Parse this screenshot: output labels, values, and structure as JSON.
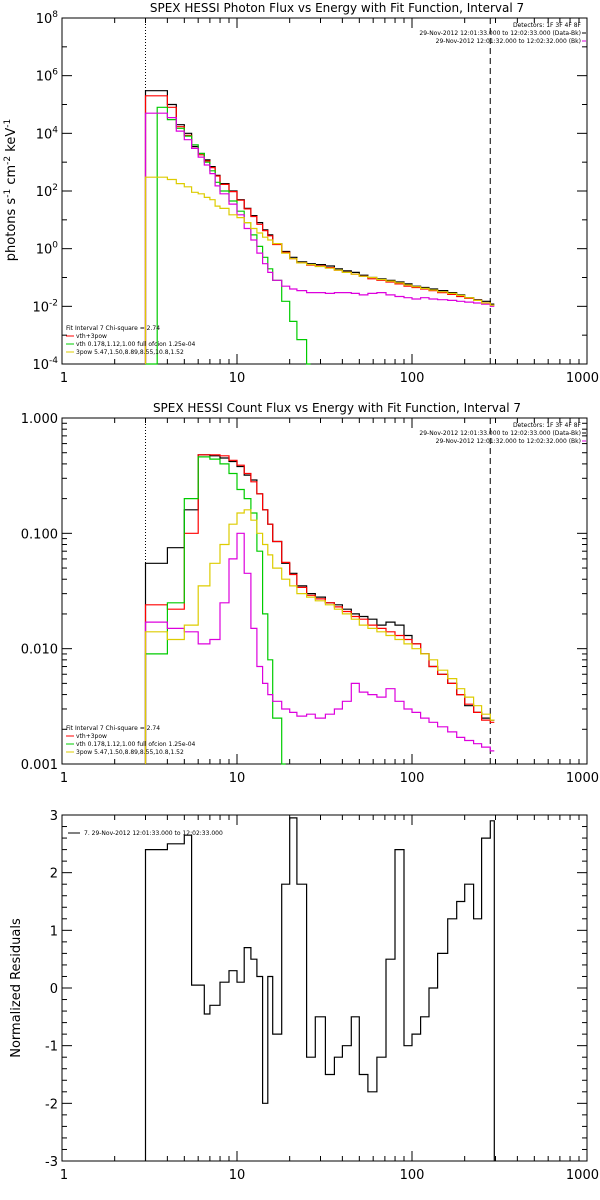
{
  "chart_data": [
    {
      "type": "line",
      "title": "SPEX HESSI Photon Flux vs Energy with Fit Function, Interval 7",
      "ylabel": "photons s-1 cm-2 keV-1",
      "xlabel": "",
      "x_scale": "log",
      "y_scale": "log",
      "xlim": [
        1,
        1000
      ],
      "ylim": [
        0.0001,
        100000000
      ],
      "x_ticks": [
        1,
        10,
        100,
        1000
      ],
      "x_tick_labels": [
        "1",
        "10",
        "100",
        "1000"
      ],
      "y_ticks": [
        0.0001,
        0.01,
        1,
        100,
        10000,
        1000000,
        100000000
      ],
      "y_tick_labels": [
        [
          "10",
          "-4"
        ],
        [
          "10",
          "-2"
        ],
        [
          "10",
          "0"
        ],
        [
          "10",
          "2"
        ],
        [
          "10",
          "4"
        ],
        [
          "10",
          "6"
        ],
        [
          "10",
          "8"
        ]
      ],
      "vlines": [
        {
          "x": 3,
          "style": "dotted",
          "color": "#000000"
        },
        {
          "x": 280,
          "style": "dashed",
          "color": "#000000"
        }
      ],
      "header_text": [
        "Detectors: 1F 3F 4F 8F",
        "29-Nov-2012 12:01:33.000 to 12:02:33.000 (Data-Bk)",
        "29-Nov-2012 12:01:32.000 to 12:02:32.000 (Bk)"
      ],
      "legend_text": [
        "Fit Interval 7   Chi-square = 2.74",
        "vth+3pow",
        "vth 0.178,1.12,1.00  full ofcion 1.25e-04",
        "3pow 5.47,1.50,8.89,8.55,10.8,1.52"
      ],
      "series": [
        {
          "name": "",
          "color": "#000000",
          "x": [
            3,
            3.5,
            4,
            4.5,
            5,
            5.5,
            6,
            6.5,
            7,
            7.5,
            8,
            9,
            10,
            11,
            12,
            13,
            14,
            15,
            16,
            18,
            20,
            22,
            25,
            28,
            32,
            36,
            40,
            45,
            50,
            56,
            63,
            71,
            80,
            90,
            100,
            112,
            125,
            140,
            160,
            180,
            200,
            225,
            250,
            280
          ],
          "y": [
            300000,
            300000,
            100000,
            20000,
            10000,
            3500,
            2000,
            1200,
            700,
            350,
            180,
            100,
            50,
            25,
            14,
            8,
            4.5,
            3,
            1.5,
            0.8,
            0.5,
            0.35,
            0.3,
            0.28,
            0.25,
            0.2,
            0.17,
            0.15,
            0.12,
            0.1,
            0.09,
            0.08,
            0.07,
            0.06,
            0.05,
            0.045,
            0.04,
            0.035,
            0.03,
            0.025,
            0.02,
            0.017,
            0.015,
            0.012
          ]
        },
        {
          "name": "",
          "color": "#ff0000",
          "x": [
            3,
            3.5,
            4,
            4.5,
            5,
            5.5,
            6,
            6.5,
            7,
            7.5,
            8,
            9,
            10,
            11,
            12,
            13,
            14,
            15,
            16,
            18,
            20,
            22,
            25,
            28,
            32,
            36,
            40,
            45,
            50,
            56,
            63,
            71,
            80,
            90,
            100,
            112,
            125,
            140,
            160,
            180,
            200,
            225,
            250,
            280
          ],
          "y": [
            200000,
            200000,
            80000,
            17000,
            8500,
            3000,
            1800,
            1100,
            650,
            330,
            170,
            95,
            48,
            24,
            13,
            7,
            4.2,
            2.8,
            1.4,
            0.75,
            0.45,
            0.32,
            0.27,
            0.25,
            0.22,
            0.18,
            0.15,
            0.13,
            0.11,
            0.09,
            0.08,
            0.07,
            0.06,
            0.05,
            0.045,
            0.04,
            0.035,
            0.03,
            0.026,
            0.022,
            0.019,
            0.016,
            0.013,
            0.011
          ]
        },
        {
          "name": "",
          "color": "#00cc00",
          "x": [
            3,
            3.5,
            4,
            4.5,
            5,
            5.5,
            6,
            6.5,
            7,
            7.5,
            8,
            9,
            10,
            11,
            12,
            13,
            14,
            15,
            16,
            18,
            20,
            22,
            25
          ],
          "y": [
            0.0001,
            80000,
            30000,
            15000,
            8000,
            4000,
            2000,
            1000,
            500,
            200,
            100,
            45,
            20,
            8,
            3,
            1.2,
            0.5,
            0.2,
            0.08,
            0.015,
            0.003,
            0.0007,
            0.0001
          ]
        },
        {
          "name": "",
          "color": "#dd00dd",
          "x": [
            3,
            3.5,
            4,
            4.5,
            5,
            5.5,
            6,
            6.5,
            7,
            7.5,
            8,
            9,
            10,
            11,
            12,
            13,
            14,
            15,
            16,
            18,
            20,
            22,
            25,
            28,
            32,
            36,
            40,
            45,
            50,
            56,
            63,
            71,
            80,
            90,
            100,
            112,
            125,
            140,
            160,
            180,
            200,
            225,
            250,
            280
          ],
          "y": [
            50000,
            50000,
            35000,
            12000,
            6000,
            3000,
            1500,
            800,
            400,
            150,
            80,
            35,
            15,
            5,
            2,
            0.7,
            0.3,
            0.15,
            0.08,
            0.05,
            0.04,
            0.035,
            0.03,
            0.03,
            0.028,
            0.03,
            0.03,
            0.028,
            0.025,
            0.028,
            0.03,
            0.025,
            0.022,
            0.02,
            0.018,
            0.02,
            0.018,
            0.017,
            0.016,
            0.015,
            0.014,
            0.013,
            0.012,
            0.01
          ]
        },
        {
          "name": "",
          "color": "#ddcc00",
          "x": [
            3,
            3.5,
            4,
            4.5,
            5,
            5.5,
            6,
            6.5,
            7,
            7.5,
            8,
            9,
            10,
            11,
            12,
            13,
            14,
            15,
            16,
            18,
            20,
            22,
            25,
            28,
            32,
            36,
            40,
            45,
            50,
            56,
            63,
            71,
            80,
            90,
            100,
            112,
            125,
            140,
            160,
            180,
            200,
            225,
            250,
            280
          ],
          "y": [
            300,
            300,
            250,
            180,
            140,
            90,
            80,
            60,
            50,
            30,
            25,
            15,
            12,
            8,
            5,
            3.5,
            2.5,
            2,
            1.5,
            0.7,
            0.45,
            0.32,
            0.28,
            0.24,
            0.21,
            0.18,
            0.15,
            0.13,
            0.11,
            0.1,
            0.085,
            0.075,
            0.065,
            0.055,
            0.048,
            0.042,
            0.037,
            0.032,
            0.028,
            0.024,
            0.02,
            0.016,
            0.013,
            0.011
          ]
        }
      ]
    },
    {
      "type": "line",
      "title": "SPEX HESSI Count Flux vs Energy with Fit Function, Interval 7",
      "ylabel": "",
      "xlabel": "",
      "x_scale": "log",
      "y_scale": "log",
      "xlim": [
        1,
        1000
      ],
      "ylim": [
        0.001,
        1.0
      ],
      "x_ticks": [
        1,
        10,
        100,
        1000
      ],
      "x_tick_labels": [
        "1",
        "10",
        "100",
        "1000"
      ],
      "y_ticks": [
        0.001,
        0.01,
        0.1,
        1.0
      ],
      "y_tick_labels": [
        "0.001",
        "0.010",
        "0.100",
        "1.000"
      ],
      "vlines": [
        {
          "x": 3,
          "style": "dotted",
          "color": "#000000"
        },
        {
          "x": 280,
          "style": "dashed",
          "color": "#000000"
        }
      ],
      "header_text": [
        "Detectors: 1F 3F 4F 8F",
        "29-Nov-2012 12:01:33.000 to 12:02:33.000 (Data-Bk)",
        "29-Nov-2012 12:01:32.000 to 12:02:32.000 (Bk)"
      ],
      "legend_text": [
        "Fit Interval 7   Chi-square = 2.74",
        "vth+3pow",
        "vth 0.178,1.12,1.00  full ofcion 1.25e-04",
        "3pow 5.47,1.50,8.89,8.55,10.8,1.52"
      ],
      "series": [
        {
          "name": "",
          "color": "#000000",
          "x": [
            3,
            4,
            5,
            6,
            7,
            8,
            9,
            10,
            11,
            12,
            13,
            14,
            15,
            16,
            18,
            20,
            22,
            25,
            28,
            32,
            36,
            40,
            45,
            50,
            56,
            63,
            71,
            80,
            90,
            100,
            112,
            125,
            140,
            160,
            180,
            200,
            225,
            250,
            280
          ],
          "y": [
            0.055,
            0.075,
            0.16,
            0.48,
            0.47,
            0.45,
            0.42,
            0.38,
            0.32,
            0.29,
            0.22,
            0.16,
            0.12,
            0.085,
            0.055,
            0.045,
            0.035,
            0.03,
            0.028,
            0.025,
            0.024,
            0.022,
            0.02,
            0.019,
            0.018,
            0.016,
            0.017,
            0.016,
            0.013,
            0.011,
            0.009,
            0.007,
            0.006,
            0.005,
            0.004,
            0.0032,
            0.0028,
            0.0025,
            0.0024
          ]
        },
        {
          "name": "",
          "color": "#ff0000",
          "x": [
            3,
            4,
            5,
            6,
            7,
            8,
            9,
            10,
            11,
            12,
            13,
            14,
            15,
            16,
            18,
            20,
            22,
            25,
            28,
            32,
            36,
            40,
            45,
            50,
            56,
            63,
            71,
            80,
            90,
            100,
            112,
            125,
            140,
            160,
            180,
            200,
            225,
            250,
            280
          ],
          "y": [
            0.024,
            0.022,
            0.1,
            0.48,
            0.48,
            0.47,
            0.43,
            0.39,
            0.33,
            0.28,
            0.22,
            0.16,
            0.12,
            0.085,
            0.056,
            0.044,
            0.034,
            0.029,
            0.027,
            0.025,
            0.023,
            0.021,
            0.019,
            0.018,
            0.016,
            0.015,
            0.014,
            0.013,
            0.012,
            0.011,
            0.009,
            0.007,
            0.006,
            0.005,
            0.004,
            0.0033,
            0.0028,
            0.0024,
            0.0023
          ]
        },
        {
          "name": "",
          "color": "#00cc00",
          "x": [
            3,
            4,
            5,
            6,
            7,
            8,
            9,
            10,
            11,
            12,
            13,
            14,
            15,
            16,
            18
          ],
          "y": [
            0.009,
            0.025,
            0.2,
            0.46,
            0.44,
            0.4,
            0.33,
            0.24,
            0.2,
            0.15,
            0.07,
            0.02,
            0.008,
            0.0025,
            0.0009
          ]
        },
        {
          "name": "",
          "color": "#dd00dd",
          "x": [
            3,
            4,
            5,
            6,
            7,
            8,
            9,
            10,
            11,
            12,
            13,
            14,
            15,
            16,
            18,
            20,
            22,
            25,
            28,
            32,
            36,
            40,
            45,
            50,
            56,
            63,
            71,
            80,
            90,
            100,
            112,
            125,
            140,
            160,
            180,
            200,
            225,
            250,
            280
          ],
          "y": [
            0.017,
            0.015,
            0.014,
            0.011,
            0.012,
            0.025,
            0.06,
            0.1,
            0.045,
            0.015,
            0.007,
            0.005,
            0.004,
            0.0035,
            0.003,
            0.0028,
            0.0026,
            0.0027,
            0.0025,
            0.0027,
            0.003,
            0.0035,
            0.005,
            0.0042,
            0.004,
            0.0038,
            0.0045,
            0.0035,
            0.003,
            0.0028,
            0.0025,
            0.0023,
            0.0021,
            0.0019,
            0.0017,
            0.0016,
            0.0015,
            0.0014,
            0.0013
          ]
        },
        {
          "name": "",
          "color": "#ddcc00",
          "x": [
            3,
            4,
            5,
            6,
            7,
            8,
            9,
            10,
            11,
            12,
            13,
            14,
            15,
            16,
            18,
            20,
            22,
            25,
            28,
            32,
            36,
            40,
            45,
            50,
            56,
            63,
            71,
            80,
            90,
            100,
            112,
            125,
            140,
            160,
            180,
            200,
            225,
            250,
            280
          ],
          "y": [
            0.014,
            0.012,
            0.016,
            0.035,
            0.055,
            0.08,
            0.12,
            0.15,
            0.16,
            0.13,
            0.1,
            0.08,
            0.065,
            0.05,
            0.04,
            0.035,
            0.03,
            0.028,
            0.026,
            0.024,
            0.022,
            0.02,
            0.018,
            0.016,
            0.015,
            0.014,
            0.013,
            0.012,
            0.011,
            0.01,
            0.009,
            0.008,
            0.0065,
            0.0055,
            0.0045,
            0.0038,
            0.0032,
            0.0027,
            0.0024
          ]
        }
      ]
    },
    {
      "type": "line",
      "title": "",
      "ylabel": "Normalized Residuals",
      "xlabel": "",
      "x_scale": "log",
      "y_scale": "linear",
      "xlim": [
        1,
        1000
      ],
      "ylim": [
        -3,
        3
      ],
      "x_ticks": [
        1,
        10,
        100,
        1000
      ],
      "x_tick_labels": [
        "1",
        "10",
        "100",
        "1000"
      ],
      "y_ticks": [
        -3,
        -2,
        -1,
        0,
        1,
        2,
        3
      ],
      "y_tick_labels": [
        "-3",
        "-2",
        "-1",
        "0",
        "1",
        "2",
        "3"
      ],
      "legend_text": [
        "7. 29-Nov-2012 12:01:33.000 to 12:02:33.000"
      ],
      "series": [
        {
          "name": "",
          "color": "#000000",
          "step": true,
          "x": [
            3,
            4,
            5,
            5.5,
            6.5,
            7,
            8,
            9,
            10,
            11,
            12,
            13,
            14,
            15,
            16,
            18,
            20,
            22,
            25,
            28,
            32,
            36,
            40,
            45,
            50,
            56,
            63,
            71,
            80,
            90,
            100,
            112,
            125,
            140,
            160,
            180,
            200,
            225,
            250,
            280
          ],
          "y": [
            2.4,
            2.5,
            2.65,
            0.05,
            -0.45,
            -0.3,
            0.1,
            0.3,
            0.1,
            0.7,
            0.5,
            0.2,
            -2.0,
            0.2,
            -0.8,
            1.8,
            2.95,
            1.8,
            -1.2,
            -0.5,
            -1.5,
            -1.2,
            -1.0,
            -0.5,
            -1.5,
            -1.8,
            -1.2,
            0.5,
            2.4,
            -1.0,
            -0.8,
            -0.5,
            0.0,
            0.6,
            1.2,
            1.5,
            1.8,
            1.2,
            2.6,
            2.9
          ]
        }
      ]
    }
  ]
}
